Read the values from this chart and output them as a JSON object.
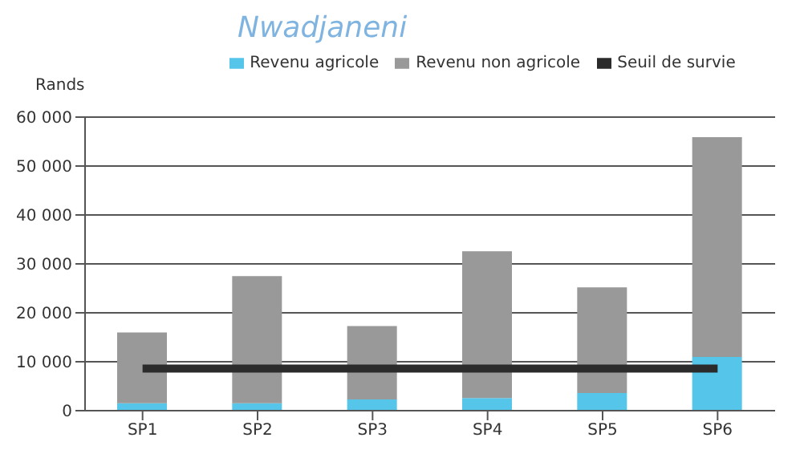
{
  "chart_data": {
    "type": "bar",
    "title": "Nwadjaneni",
    "ylabel": "Rands",
    "categories": [
      "SP1",
      "SP2",
      "SP3",
      "SP4",
      "SP5",
      "SP6"
    ],
    "series": [
      {
        "name": "Revenu agricole",
        "color": "#55c5ea",
        "values": [
          1500,
          1500,
          2300,
          2600,
          3600,
          11000
        ]
      },
      {
        "name": "Revenu non agricole",
        "color": "#999999",
        "values": [
          14500,
          26000,
          15000,
          30000,
          21600,
          44900
        ]
      },
      {
        "name": "Seuil de survie",
        "type": "line",
        "color": "#2b2b2b",
        "values": [
          8600,
          8600,
          8600,
          8600,
          8600,
          8600
        ]
      }
    ],
    "stacked": true,
    "ylim": [
      0,
      60000
    ],
    "yticks": [
      {
        "value": 0,
        "label": "0"
      },
      {
        "value": 10000,
        "label": "10 000"
      },
      {
        "value": 20000,
        "label": "20 000"
      },
      {
        "value": 30000,
        "label": "30 000"
      },
      {
        "value": 40000,
        "label": "40 000"
      },
      {
        "value": 50000,
        "label": "50 000"
      },
      {
        "value": 60000,
        "label": "60 000"
      }
    ],
    "grid": "y",
    "legend": "top"
  }
}
